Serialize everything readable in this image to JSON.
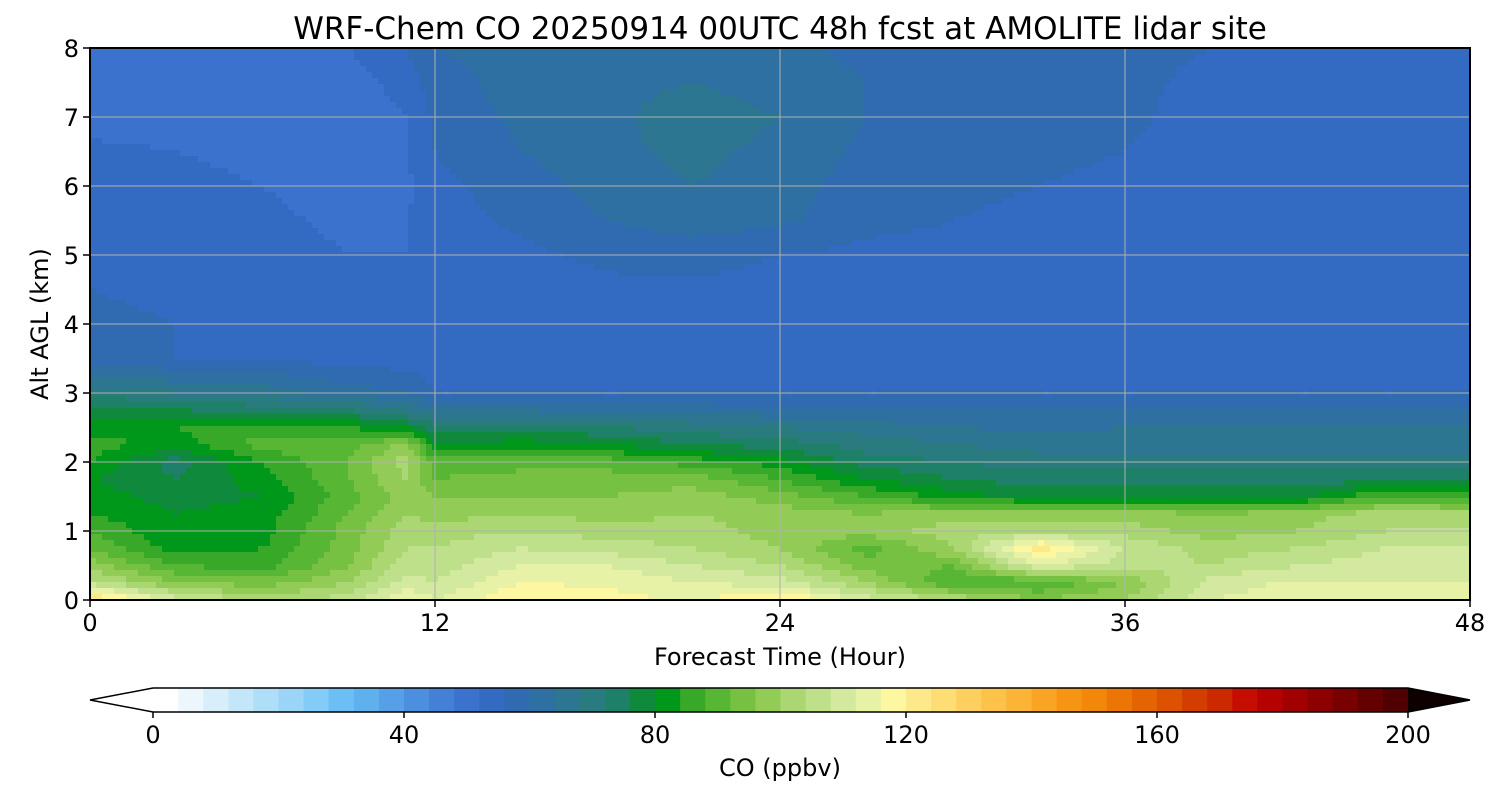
{
  "chart_data": {
    "type": "heatmap",
    "title": "WRF-Chem CO  20250914 00UTC 48h fcst at AMOLITE lidar site",
    "xlabel": "Forecast Time (Hour)",
    "ylabel": "Alt AGL (km)",
    "xlim": [
      0,
      48
    ],
    "ylim": [
      0,
      8
    ],
    "x_ticks": [
      "0",
      "12",
      "24",
      "36",
      "48"
    ],
    "y_ticks": [
      "0",
      "1",
      "2",
      "3",
      "4",
      "5",
      "6",
      "7",
      "8"
    ],
    "grid": true,
    "x": [
      0,
      3,
      6,
      9,
      11,
      12,
      15,
      18,
      21,
      24,
      27,
      30,
      33,
      36,
      39,
      42,
      45,
      48
    ],
    "y": [
      0,
      0.25,
      0.5,
      0.75,
      1.0,
      1.25,
      1.5,
      1.75,
      2.0,
      2.25,
      2.5,
      2.75,
      3.0,
      3.5,
      4.0,
      4.5,
      5.0,
      5.5,
      6.0,
      6.5,
      7.0,
      7.5,
      8.0
    ],
    "z_ppbv": [
      [
        125,
        110,
        102,
        106,
        116,
        112,
        120,
        118,
        115,
        122,
        110,
        104,
        96,
        100,
        112,
        114,
        114,
        114
      ],
      [
        106,
        96,
        94,
        100,
        110,
        108,
        116,
        115,
        112,
        110,
        100,
        88,
        88,
        96,
        110,
        113,
        112,
        112
      ],
      [
        98,
        88,
        86,
        96,
        106,
        106,
        112,
        112,
        108,
        104,
        94,
        92,
        112,
        106,
        104,
        108,
        110,
        110
      ],
      [
        92,
        82,
        84,
        94,
        104,
        104,
        108,
        106,
        104,
        100,
        90,
        100,
        122,
        108,
        102,
        104,
        108,
        108
      ],
      [
        88,
        80,
        82,
        94,
        102,
        102,
        104,
        102,
        102,
        98,
        98,
        102,
        104,
        102,
        98,
        100,
        104,
        104
      ],
      [
        84,
        80,
        82,
        92,
        100,
        98,
        100,
        98,
        100,
        98,
        96,
        98,
        98,
        98,
        96,
        98,
        102,
        102
      ],
      [
        82,
        78,
        80,
        90,
        98,
        96,
        96,
        96,
        98,
        94,
        88,
        82,
        78,
        78,
        78,
        78,
        88,
        86
      ],
      [
        80,
        76,
        82,
        92,
        100,
        92,
        94,
        94,
        94,
        88,
        80,
        76,
        74,
        74,
        74,
        74,
        74,
        74
      ],
      [
        84,
        74,
        84,
        92,
        102,
        90,
        90,
        90,
        86,
        82,
        74,
        72,
        70,
        70,
        70,
        70,
        70,
        70
      ],
      [
        86,
        82,
        90,
        90,
        98,
        80,
        82,
        80,
        76,
        74,
        70,
        68,
        66,
        66,
        66,
        66,
        66,
        66
      ],
      [
        82,
        84,
        86,
        84,
        80,
        74,
        74,
        72,
        70,
        68,
        66,
        64,
        63,
        64,
        64,
        64,
        64,
        64
      ],
      [
        78,
        76,
        74,
        72,
        68,
        64,
        64,
        62,
        62,
        61,
        60,
        60,
        60,
        60,
        60,
        60,
        60,
        60
      ],
      [
        70,
        68,
        66,
        62,
        60,
        56,
        56,
        56,
        56,
        56,
        56,
        56,
        56,
        56,
        56,
        56,
        56,
        56
      ],
      [
        58,
        56,
        56,
        54,
        54,
        54,
        54,
        54,
        53,
        53,
        53,
        53,
        54,
        54,
        53,
        53,
        54,
        54
      ],
      [
        57,
        56,
        55,
        54,
        54,
        54,
        54,
        54,
        53,
        53,
        53,
        54,
        54,
        54,
        52,
        52,
        53,
        54
      ],
      [
        56,
        55,
        54,
        53,
        53,
        54,
        54,
        55,
        55,
        54,
        54,
        54,
        54,
        53,
        52,
        52,
        53,
        53
      ],
      [
        56,
        55,
        54,
        52,
        52,
        53,
        55,
        57,
        58,
        56,
        55,
        55,
        55,
        54,
        53,
        53,
        54,
        55
      ],
      [
        56,
        54,
        53,
        51,
        52,
        54,
        57,
        60,
        62,
        61,
        57,
        56,
        55,
        54,
        53,
        53,
        55,
        55
      ],
      [
        55,
        54,
        52,
        50,
        51,
        55,
        58,
        62,
        64,
        62,
        58,
        57,
        56,
        55,
        53,
        52,
        54,
        55
      ],
      [
        53,
        52,
        50,
        49,
        52,
        56,
        60,
        63,
        65,
        63,
        59,
        58,
        57,
        56,
        54,
        52,
        53,
        54
      ],
      [
        50,
        50,
        48,
        48,
        52,
        57,
        61,
        63,
        66,
        64,
        60,
        59,
        58,
        57,
        54,
        52,
        52,
        53
      ],
      [
        48,
        48,
        48,
        50,
        54,
        58,
        62,
        63,
        64,
        62,
        60,
        59,
        58,
        57,
        55,
        53,
        52,
        52
      ],
      [
        49,
        49,
        50,
        52,
        56,
        60,
        62,
        63,
        63,
        61,
        59,
        58,
        58,
        57,
        56,
        54,
        53,
        52
      ]
    ],
    "colorbar": {
      "label": "CO  (ppbv)",
      "min": 0,
      "max": 200,
      "step": 4,
      "ticks": [
        "0",
        "40",
        "80",
        "120",
        "160",
        "200"
      ],
      "extend": "both",
      "colors": [
        "#ffffff",
        "#ecf6fd",
        "#d8eefb",
        "#c4e6f9",
        "#afdef8",
        "#9ad5f7",
        "#82ccf7",
        "#6cbff5",
        "#5fb1ee",
        "#55a0e6",
        "#4c8fde",
        "#4380d6",
        "#3a72cd",
        "#346bc2",
        "#306bb2",
        "#2e70a2",
        "#2d7691",
        "#2a7b80",
        "#1e8068",
        "#0f8a3c",
        "#00981a",
        "#37a828",
        "#58b635",
        "#76c142",
        "#92cc57",
        "#aad772",
        "#bfe08b",
        "#d3e9a0",
        "#e7f2a6",
        "#fcf7a0",
        "#fde98a",
        "#fddd74",
        "#fdcf5e",
        "#fcc24a",
        "#fbb436",
        "#f9a423",
        "#f69514",
        "#f2870a",
        "#ec7605",
        "#e56402",
        "#dc5200",
        "#d33e00",
        "#cb2a00",
        "#c50d00",
        "#b40200",
        "#a00000",
        "#8c0000",
        "#780000",
        "#640000",
        "#500000",
        "#3a0000",
        "#240000",
        "#0e0000"
      ]
    }
  }
}
